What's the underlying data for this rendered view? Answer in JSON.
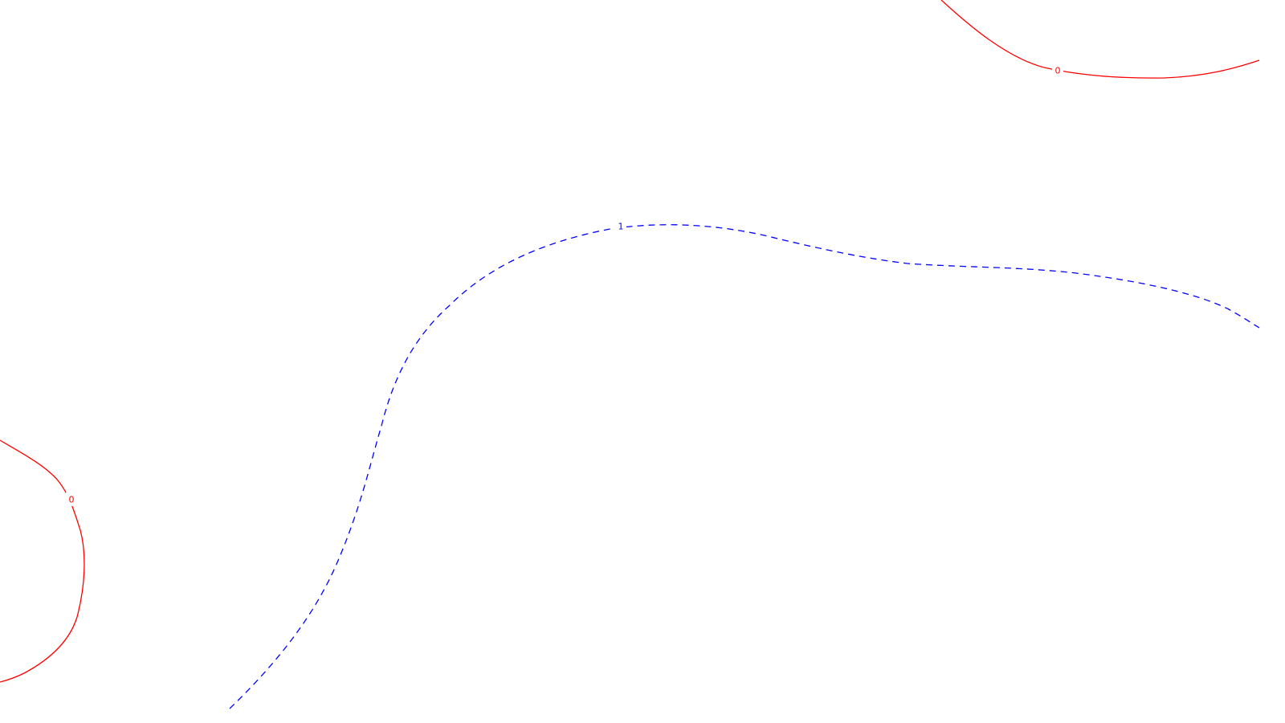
{
  "chart_data": {
    "type": "contour",
    "title": "",
    "xlabel": "",
    "ylabel": "",
    "grid": false,
    "legend": "none",
    "series": [
      {
        "level": "0",
        "label": "0",
        "color": "#ff0000",
        "style": "solid"
      },
      {
        "level": "0",
        "label": "0",
        "color": "#ff0000",
        "style": "solid"
      },
      {
        "level": "1",
        "label": "1",
        "color": "#0000ff",
        "style": "dashed"
      }
    ]
  }
}
